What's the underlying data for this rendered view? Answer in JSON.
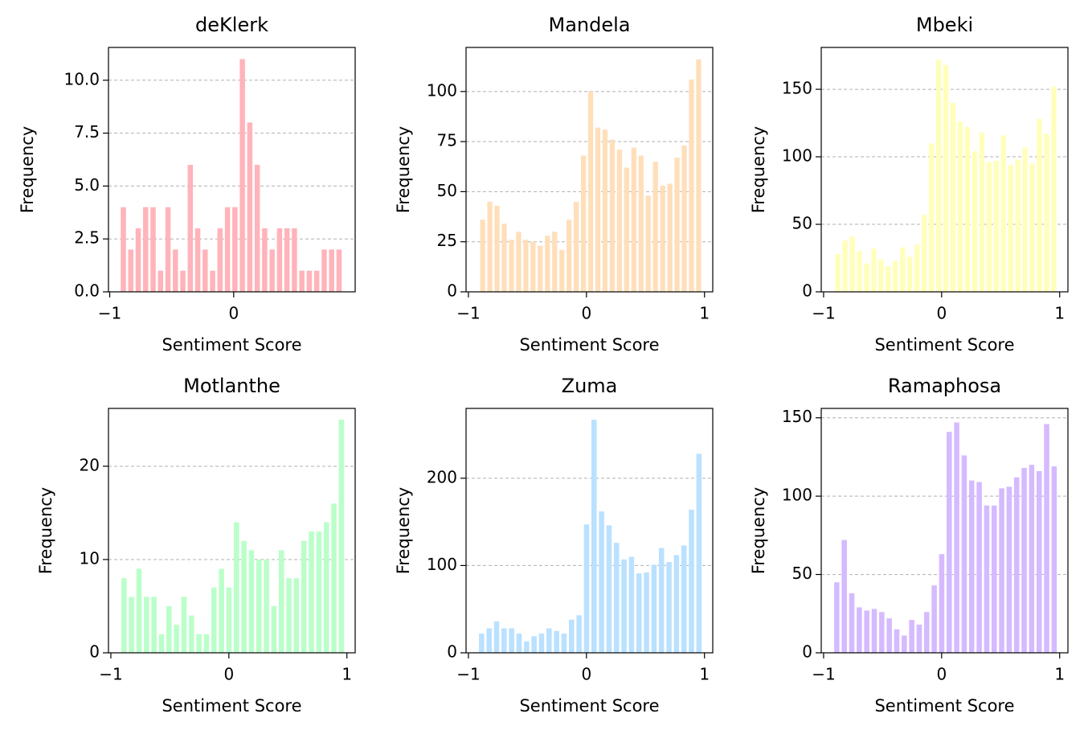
{
  "chart_data": [
    {
      "type": "histogram",
      "title": "deKlerk",
      "xlabel": "Sentiment Score",
      "ylabel": "Frequency",
      "color": "#ffb3ba",
      "grid": "y",
      "bins": [
        -0.92,
        -0.86,
        -0.8,
        -0.74,
        -0.68,
        -0.62,
        -0.56,
        -0.5,
        -0.44,
        -0.38,
        -0.32,
        -0.26,
        -0.2,
        -0.14,
        -0.08,
        -0.02,
        0.04,
        0.1,
        0.16,
        0.22,
        0.28,
        0.34,
        0.4,
        0.46,
        0.52,
        0.58,
        0.64,
        0.7,
        0.76,
        0.82,
        0.88
      ],
      "values": [
        4,
        2,
        3,
        4,
        4,
        1,
        4,
        2,
        1,
        6,
        3,
        2,
        1,
        3,
        4,
        4,
        11,
        8,
        6,
        3,
        2,
        3,
        3,
        3,
        1,
        1,
        1,
        2,
        2,
        2
      ],
      "xlim": [
        -1.01,
        0.98
      ],
      "xticks": [
        {
          "value": -1,
          "label": "−1"
        },
        0
      ],
      "ylim": [
        0,
        11.55
      ],
      "yticks": [
        {
          "value": 0,
          "label": "0.0"
        },
        2.5,
        {
          "value": 5,
          "label": "5.0"
        },
        7.5,
        {
          "value": 10,
          "label": "10.0"
        }
      ]
    },
    {
      "type": "histogram",
      "title": "Mandela",
      "xlabel": "Sentiment Score",
      "ylabel": "Frequency",
      "color": "#ffdfba",
      "grid": "y",
      "bins": [
        -0.91,
        -0.849,
        -0.788,
        -0.727,
        -0.666,
        -0.605,
        -0.544,
        -0.483,
        -0.422,
        -0.361,
        -0.3,
        -0.239,
        -0.178,
        -0.117,
        -0.056,
        0.005,
        0.066,
        0.127,
        0.188,
        0.249,
        0.31,
        0.371,
        0.432,
        0.493,
        0.554,
        0.615,
        0.676,
        0.737,
        0.798,
        0.859,
        0.92,
        0.981
      ],
      "values": [
        36,
        45,
        43,
        34,
        26,
        30,
        26,
        25,
        23,
        28,
        30,
        21,
        36,
        45,
        68,
        100,
        82,
        81,
        76,
        71,
        62,
        72,
        68,
        48,
        65,
        53,
        54,
        67,
        73,
        106,
        116
      ],
      "xlim": [
        -1.02,
        1.07
      ],
      "xticks": [
        {
          "value": -1,
          "label": "−1"
        },
        0,
        1
      ],
      "ylim": [
        0,
        122
      ],
      "yticks": [
        0,
        25,
        50,
        75,
        100
      ]
    },
    {
      "type": "histogram",
      "title": "Mbeki",
      "xlabel": "Sentiment Score",
      "ylabel": "Frequency",
      "color": "#ffffba",
      "grid": "y",
      "bins": [
        -0.91,
        -0.849,
        -0.788,
        -0.727,
        -0.666,
        -0.605,
        -0.544,
        -0.483,
        -0.422,
        -0.361,
        -0.3,
        -0.239,
        -0.178,
        -0.117,
        -0.056,
        0.005,
        0.066,
        0.127,
        0.188,
        0.249,
        0.31,
        0.371,
        0.432,
        0.493,
        0.554,
        0.615,
        0.676,
        0.737,
        0.798,
        0.859,
        0.92,
        0.981
      ],
      "values": [
        28,
        38,
        41,
        30,
        21,
        32,
        24,
        19,
        23,
        33,
        26,
        35,
        57,
        110,
        172,
        168,
        140,
        126,
        122,
        104,
        118,
        96,
        97,
        116,
        94,
        98,
        107,
        95,
        128,
        117,
        152
      ],
      "xlim": [
        -1.02,
        1.07
      ],
      "xticks": [
        {
          "value": -1,
          "label": "−1"
        },
        0,
        1
      ],
      "ylim": [
        0,
        181
      ],
      "yticks": [
        0,
        50,
        100,
        150
      ]
    },
    {
      "type": "histogram",
      "title": "Motlanthe",
      "xlabel": "Sentiment Score",
      "ylabel": "Frequency",
      "color": "#baffc9",
      "grid": "y",
      "bins": [
        -0.92,
        -0.8565,
        -0.793,
        -0.7295,
        -0.666,
        -0.6025,
        -0.539,
        -0.4755,
        -0.412,
        -0.3485,
        -0.285,
        -0.2215,
        -0.158,
        -0.0945,
        -0.031,
        0.0325,
        0.096,
        0.1595,
        0.223,
        0.2865,
        0.35,
        0.4135,
        0.477,
        0.5405,
        0.604,
        0.6675,
        0.731,
        0.7945,
        0.858,
        0.9215,
        0.985
      ],
      "values": [
        8,
        6,
        9,
        6,
        6,
        2,
        5,
        3,
        6,
        4,
        2,
        2,
        7,
        9,
        7,
        14,
        12,
        11,
        10,
        10,
        5,
        11,
        8,
        8,
        12,
        13,
        13,
        14,
        16,
        25
      ],
      "xlim": [
        -1.02,
        1.07
      ],
      "xticks": [
        {
          "value": -1,
          "label": "−1"
        },
        0,
        1
      ],
      "ylim": [
        0,
        26.2
      ],
      "yticks": [
        0,
        10,
        20
      ]
    },
    {
      "type": "histogram",
      "title": "Zuma",
      "xlabel": "Sentiment Score",
      "ylabel": "Frequency",
      "color": "#bae1ff",
      "grid": "y",
      "bins": [
        -0.92,
        -0.8565,
        -0.793,
        -0.7295,
        -0.666,
        -0.6025,
        -0.539,
        -0.4755,
        -0.412,
        -0.3485,
        -0.285,
        -0.2215,
        -0.158,
        -0.0945,
        -0.031,
        0.0325,
        0.096,
        0.1595,
        0.223,
        0.2865,
        0.35,
        0.4135,
        0.477,
        0.5405,
        0.604,
        0.6675,
        0.731,
        0.7945,
        0.858,
        0.9215,
        0.985
      ],
      "values": [
        22,
        28,
        36,
        28,
        28,
        22,
        13,
        19,
        22,
        28,
        25,
        22,
        38,
        43,
        147,
        267,
        162,
        146,
        126,
        107,
        110,
        91,
        92,
        101,
        120,
        104,
        112,
        123,
        164,
        228
      ],
      "xlim": [
        -1.02,
        1.07
      ],
      "xticks": [
        {
          "value": -1,
          "label": "−1"
        },
        0,
        1
      ],
      "ylim": [
        0,
        280
      ],
      "yticks": [
        0,
        100,
        200
      ]
    },
    {
      "type": "histogram",
      "title": "Ramaphosa",
      "xlabel": "Sentiment Score",
      "ylabel": "Frequency",
      "color": "#d5baff",
      "grid": "y",
      "bins": [
        -0.92,
        -0.8565,
        -0.793,
        -0.7295,
        -0.666,
        -0.6025,
        -0.539,
        -0.4755,
        -0.412,
        -0.3485,
        -0.285,
        -0.2215,
        -0.158,
        -0.0945,
        -0.031,
        0.0325,
        0.096,
        0.1595,
        0.223,
        0.2865,
        0.35,
        0.4135,
        0.477,
        0.5405,
        0.604,
        0.6675,
        0.731,
        0.7945,
        0.858,
        0.9215,
        0.985
      ],
      "values": [
        45,
        72,
        38,
        29,
        27,
        28,
        26,
        22,
        15,
        11,
        21,
        18,
        26,
        43,
        63,
        141,
        147,
        126,
        110,
        109,
        94,
        94,
        105,
        106,
        112,
        118,
        120,
        116,
        146,
        119
      ],
      "xlim": [
        -1.02,
        1.07
      ],
      "xticks": [
        {
          "value": -1,
          "label": "−1"
        },
        0,
        1
      ],
      "ylim": [
        0,
        156
      ],
      "yticks": [
        0,
        50,
        100,
        150
      ]
    }
  ]
}
